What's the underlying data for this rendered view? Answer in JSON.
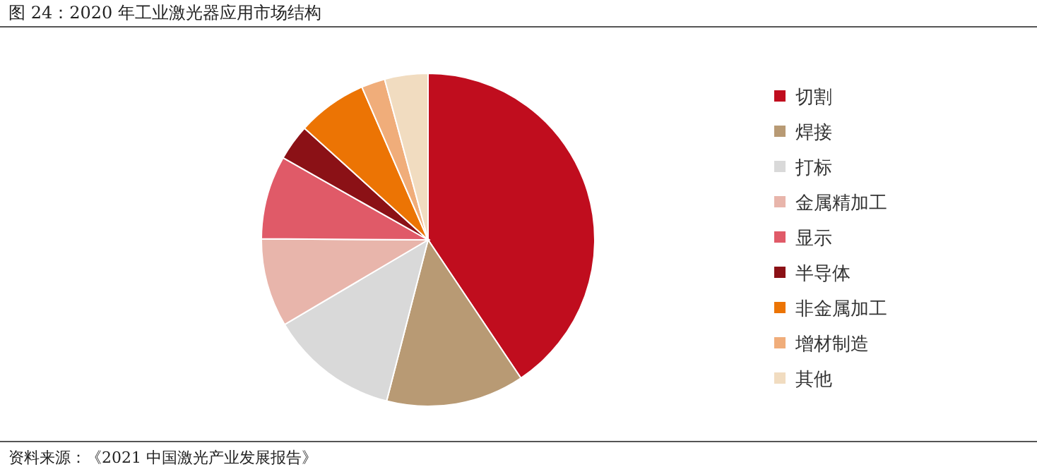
{
  "chart_data": {
    "type": "pie",
    "title": "图 24：2020 年工业激光器应用市场结构",
    "categories": [
      "切割",
      "焊接",
      "打标",
      "金属精加工",
      "显示",
      "半导体",
      "非金属加工",
      "增材制造",
      "其他"
    ],
    "values": [
      40.6,
      13.4,
      12.5,
      8.6,
      8.1,
      3.5,
      6.8,
      2.3,
      4.2
    ],
    "colors": [
      "#c00d1e",
      "#b89a74",
      "#d9d9d9",
      "#e8b5ab",
      "#e05a68",
      "#8b1116",
      "#ec7404",
      "#f0ad7a",
      "#f1dcc0"
    ],
    "legend": "right",
    "annotations": [
      "资料来源：《2021 中国激光产业发展报告》"
    ]
  }
}
